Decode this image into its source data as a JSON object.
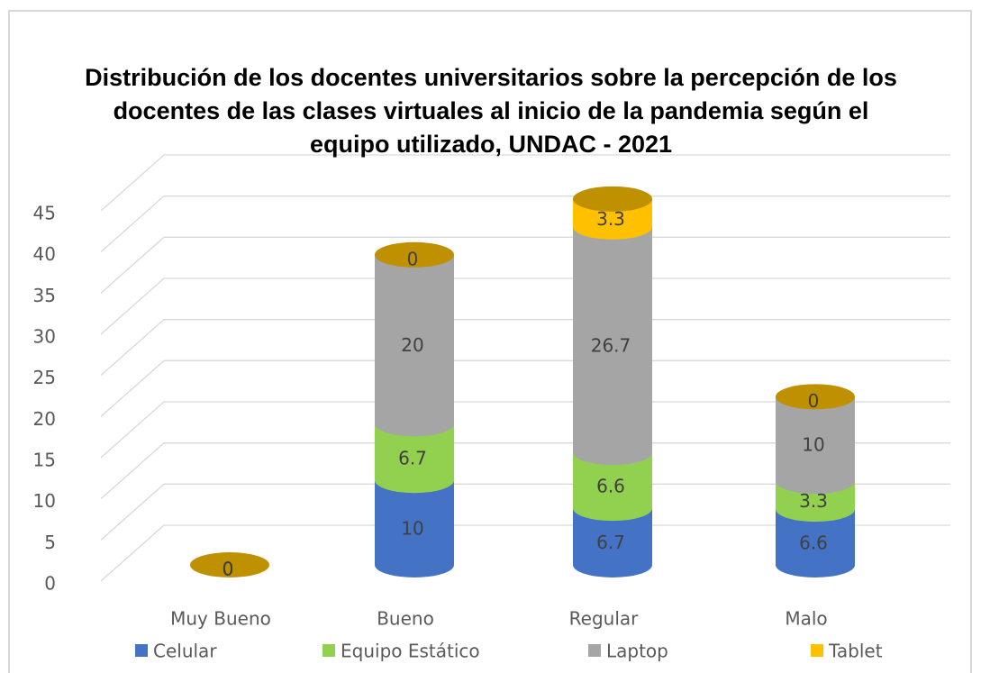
{
  "chart_data": {
    "type": "bar3d_stacked",
    "title": "Distribución de los docentes universitarios sobre la percepción de los docentes de las clases virtuales al inicio de la pandemia según el equipo utilizado, UNDAC - 2021",
    "categories": [
      "Muy Bueno",
      "Bueno",
      "Regular",
      "Malo"
    ],
    "series": [
      {
        "name": "Celular",
        "color": "#4472c4",
        "values": [
          0,
          10,
          6.7,
          6.6
        ]
      },
      {
        "name": "Equipo Estático",
        "color": "#92d050",
        "values": [
          0,
          6.7,
          6.6,
          3.3
        ]
      },
      {
        "name": "Laptop",
        "color": "#a5a5a5",
        "values": [
          0,
          20,
          26.7,
          10
        ]
      },
      {
        "name": "Tablet",
        "color": "#ffc000",
        "values": [
          0,
          0,
          3.3,
          0
        ]
      }
    ],
    "ylim": [
      0,
      45
    ],
    "yticks": [
      0,
      5,
      10,
      15,
      20,
      25,
      30,
      35,
      40,
      45
    ],
    "grid": true,
    "legend": "bottom"
  }
}
